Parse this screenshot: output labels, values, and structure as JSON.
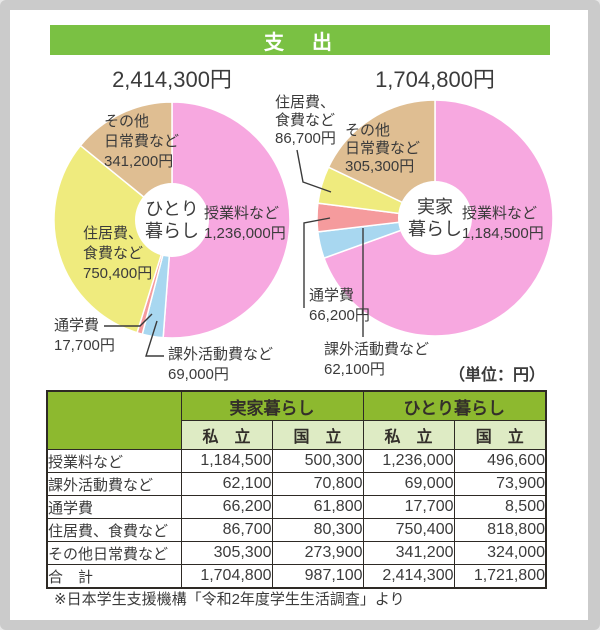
{
  "header": {
    "title": "支　出"
  },
  "unit_note": "（単位：円）",
  "footnote": "※日本学生支援機構「令和2年度学生生活調査」より",
  "colors": {
    "banner_green": "#7ac143",
    "table_header_green": "#8db92f",
    "table_subheader_green": "#deebc4",
    "pink": "#f7a8e0",
    "blue": "#a8d7f0",
    "salmon": "#f59b9d",
    "yellow": "#efeb7e",
    "tan": "#dfbe92",
    "text": "#3b3b3b"
  },
  "chart_data": [
    {
      "type": "pie",
      "name": "ひとり暮らし",
      "total_value": 2414300,
      "total_label": "2,414,300円",
      "center_label_lines": [
        "ひとり",
        "暮らし"
      ],
      "start_angle_deg": 0,
      "clockwise": true,
      "segments": [
        {
          "name": "授業料など",
          "value": 1236000,
          "value_label": "1,236,000円",
          "color": "#f7a8e0",
          "label_lines": [
            "授業料など",
            "1,236,000円"
          ]
        },
        {
          "name": "課外活動費など",
          "value": 69000,
          "value_label": "69,000円",
          "color": "#a8d7f0",
          "label_lines": [
            "課外活動費など",
            "69,000円"
          ]
        },
        {
          "name": "通学費",
          "value": 17700,
          "value_label": "17,700円",
          "color": "#f59b9d",
          "label_lines": [
            "通学費",
            "17,700円"
          ]
        },
        {
          "name": "住居費、食費など",
          "value": 750400,
          "value_label": "750,400円",
          "color": "#efeb7e",
          "label_lines": [
            "住居費、",
            "食費など",
            "750,400円"
          ]
        },
        {
          "name": "その他日常費など",
          "value": 341200,
          "value_label": "341,200円",
          "color": "#dfbe92",
          "label_lines": [
            "その他",
            "日常費など",
            "341,200円"
          ]
        }
      ]
    },
    {
      "type": "pie",
      "name": "実家暮らし",
      "total_value": 1704800,
      "total_label": "1,704,800円",
      "center_label_lines": [
        "実家",
        "暮らし"
      ],
      "start_angle_deg": 0,
      "clockwise": true,
      "segments": [
        {
          "name": "授業料など",
          "value": 1184500,
          "value_label": "1,184,500円",
          "color": "#f7a8e0",
          "label_lines": [
            "授業料など",
            "1,184,500円"
          ]
        },
        {
          "name": "課外活動費など",
          "value": 62100,
          "value_label": "62,100円",
          "color": "#a8d7f0",
          "label_lines": [
            "課外活動費など",
            "62,100円"
          ]
        },
        {
          "name": "通学費",
          "value": 66200,
          "value_label": "66,200円",
          "color": "#f59b9d",
          "label_lines": [
            "通学費",
            "66,200円"
          ]
        },
        {
          "name": "住居費、食費など",
          "value": 86700,
          "value_label": "86,700円",
          "color": "#efeb7e",
          "label_lines": [
            "住居費、",
            "食費など",
            "86,700円"
          ]
        },
        {
          "name": "その他日常費など",
          "value": 305300,
          "value_label": "305,300円",
          "color": "#dfbe92",
          "label_lines": [
            "その他",
            "日常費など",
            "305,300円"
          ]
        }
      ]
    }
  ],
  "table": {
    "col_groups": [
      "実家暮らし",
      "ひとり暮らし"
    ],
    "sub_headers": [
      "私　立",
      "国　立",
      "私　立",
      "国　立"
    ],
    "rows": [
      {
        "label": "授業料など",
        "values": [
          "1,184,500",
          "500,300",
          "1,236,000",
          "496,600"
        ]
      },
      {
        "label": "課外活動費など",
        "values": [
          "62,100",
          "70,800",
          "69,000",
          "73,900"
        ]
      },
      {
        "label": "通学費",
        "values": [
          "66,200",
          "61,800",
          "17,700",
          "8,500"
        ]
      },
      {
        "label": "住居費、食費など",
        "values": [
          "86,700",
          "80,300",
          "750,400",
          "818,800"
        ]
      },
      {
        "label": "その他日常費など",
        "values": [
          "305,300",
          "273,900",
          "341,200",
          "324,000"
        ]
      },
      {
        "label": "合　計",
        "values": [
          "1,704,800",
          "987,100",
          "2,414,300",
          "1,721,800"
        ]
      }
    ]
  }
}
